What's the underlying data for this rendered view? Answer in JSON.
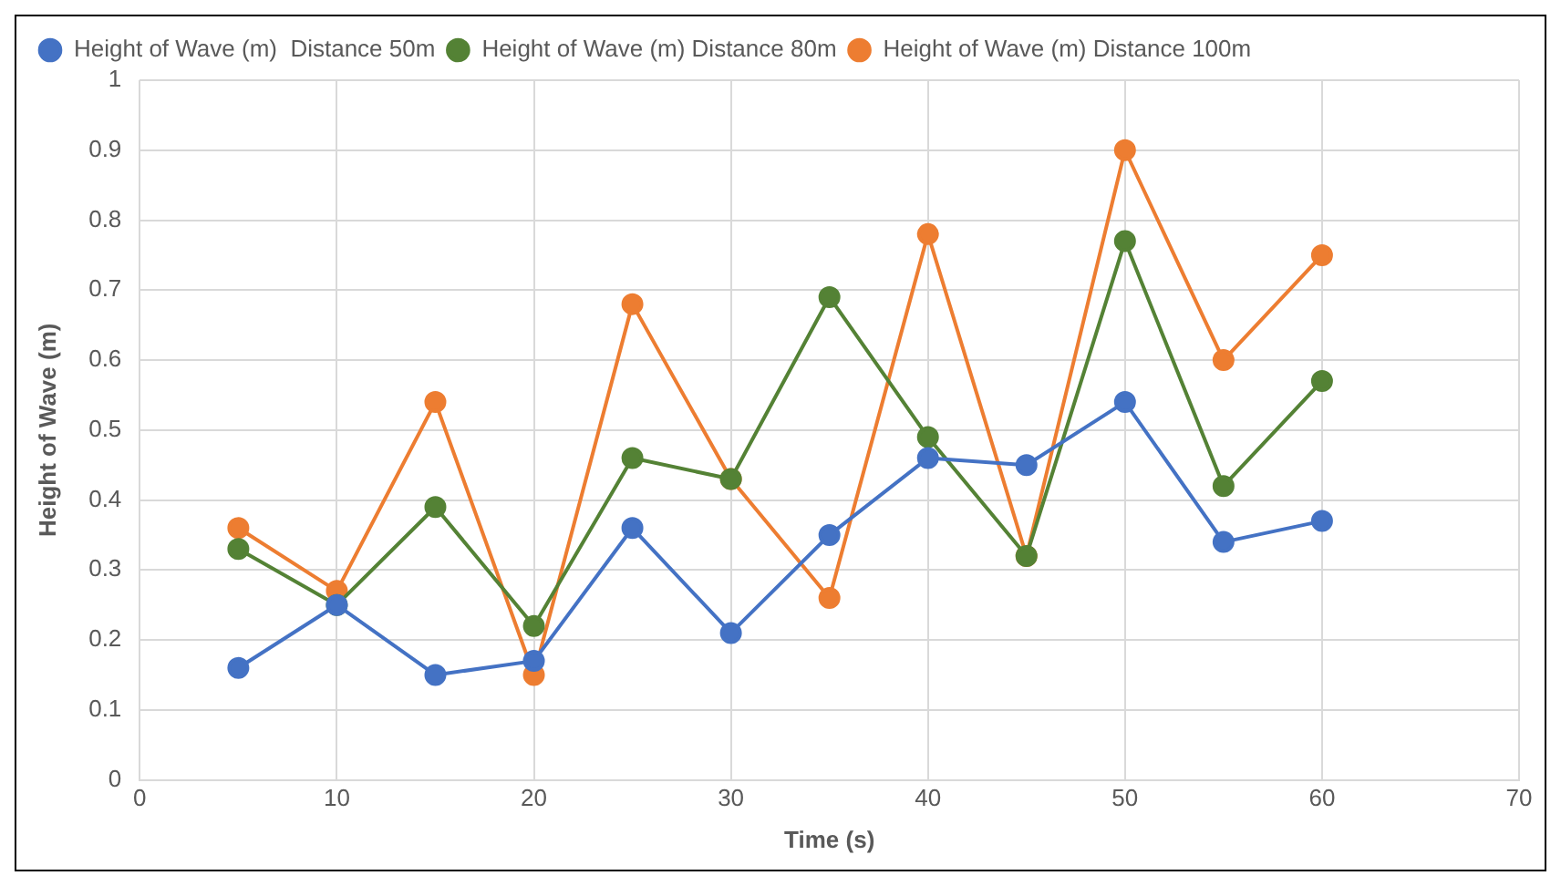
{
  "chart_data": {
    "type": "line",
    "xlabel": "Time (s)",
    "ylabel": "Height of Wave (m)",
    "x": [
      5,
      10,
      15,
      20,
      25,
      30,
      35,
      40,
      45,
      50,
      55,
      60
    ],
    "series": [
      {
        "name": "Height of Wave (m)  Distance 50m",
        "color": "#4472c4",
        "values": [
          0.16,
          0.25,
          0.15,
          0.17,
          0.36,
          0.21,
          0.35,
          0.46,
          0.45,
          0.54,
          0.34,
          0.37
        ]
      },
      {
        "name": "Height of Wave (m) Distance 80m",
        "color": "#548235",
        "values": [
          0.33,
          0.25,
          0.39,
          0.22,
          0.46,
          0.43,
          0.69,
          0.49,
          0.32,
          0.77,
          0.42,
          0.57
        ]
      },
      {
        "name": "Height of Wave (m) Distance 100m",
        "color": "#ed7d31",
        "values": [
          0.36,
          0.27,
          0.54,
          0.15,
          0.68,
          0.43,
          0.26,
          0.78,
          0.32,
          0.9,
          0.6,
          0.75
        ]
      }
    ],
    "xlim": [
      0,
      70
    ],
    "xticks": [
      0,
      10,
      20,
      30,
      40,
      50,
      60,
      70
    ],
    "ylim": [
      0,
      1
    ],
    "yticks": [
      0,
      0.1,
      0.2,
      0.3,
      0.4,
      0.5,
      0.6,
      0.7,
      0.8,
      0.9,
      1
    ],
    "grid": true,
    "legend": "top left",
    "marker": "circle",
    "line_style": "solid"
  }
}
